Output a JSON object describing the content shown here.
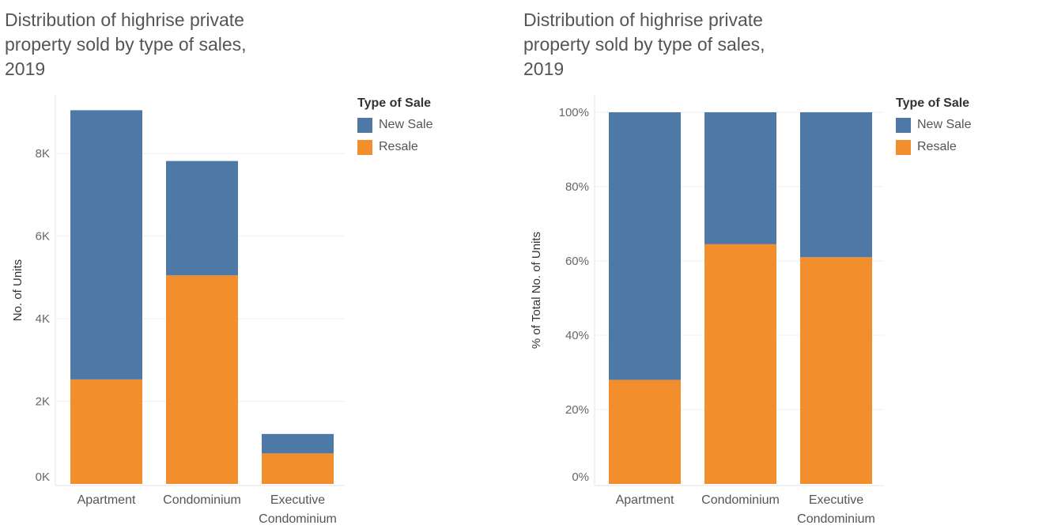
{
  "chart_data": [
    {
      "type": "bar",
      "stacked": true,
      "title": "Distribution of highrise private property sold by type of sales, 2019",
      "xlabel": "",
      "ylabel": "No. of Units",
      "ylim": [
        0,
        9000
      ],
      "yticks": [
        {
          "value": 0,
          "label": "0K"
        },
        {
          "value": 2000,
          "label": "2K"
        },
        {
          "value": 4000,
          "label": "4K"
        },
        {
          "value": 6000,
          "label": "6K"
        },
        {
          "value": 8000,
          "label": "8K"
        }
      ],
      "categories": [
        {
          "label": "Apartment",
          "lines": [
            "Apartment"
          ]
        },
        {
          "label": "Condominium",
          "lines": [
            "Condominium"
          ]
        },
        {
          "label": "Executive Condominium",
          "lines": [
            "Executive",
            "Condominium"
          ]
        }
      ],
      "series": [
        {
          "name": "Resale",
          "color": "#F28E2B",
          "values": [
            2530,
            5050,
            740
          ]
        },
        {
          "name": "New Sale",
          "color": "#4E79A7",
          "values": [
            6520,
            2770,
            470
          ]
        }
      ],
      "legend": {
        "title": "Type of Sale",
        "items": [
          "New Sale",
          "Resale"
        ],
        "position": "top-right"
      }
    },
    {
      "type": "bar",
      "stacked": true,
      "title": "Distribution of highrise private property sold by type of sales, 2019",
      "xlabel": "",
      "ylabel": "% of Total No. of Units",
      "ylim": [
        0,
        100
      ],
      "yticks": [
        {
          "value": 0,
          "label": "0%"
        },
        {
          "value": 20,
          "label": "20%"
        },
        {
          "value": 40,
          "label": "40%"
        },
        {
          "value": 60,
          "label": "60%"
        },
        {
          "value": 80,
          "label": "80%"
        },
        {
          "value": 100,
          "label": "100%"
        }
      ],
      "categories": [
        {
          "label": "Apartment",
          "lines": [
            "Apartment"
          ]
        },
        {
          "label": "Condominium",
          "lines": [
            "Condominium"
          ]
        },
        {
          "label": "Executive Condominium",
          "lines": [
            "Executive",
            "Condominium"
          ]
        }
      ],
      "series": [
        {
          "name": "Resale",
          "color": "#F28E2B",
          "values": [
            28,
            64.5,
            61
          ]
        },
        {
          "name": "New Sale",
          "color": "#4E79A7",
          "values": [
            72,
            35.5,
            39
          ]
        }
      ],
      "legend": {
        "title": "Type of Sale",
        "items": [
          "New Sale",
          "Resale"
        ],
        "position": "top-right"
      }
    }
  ]
}
